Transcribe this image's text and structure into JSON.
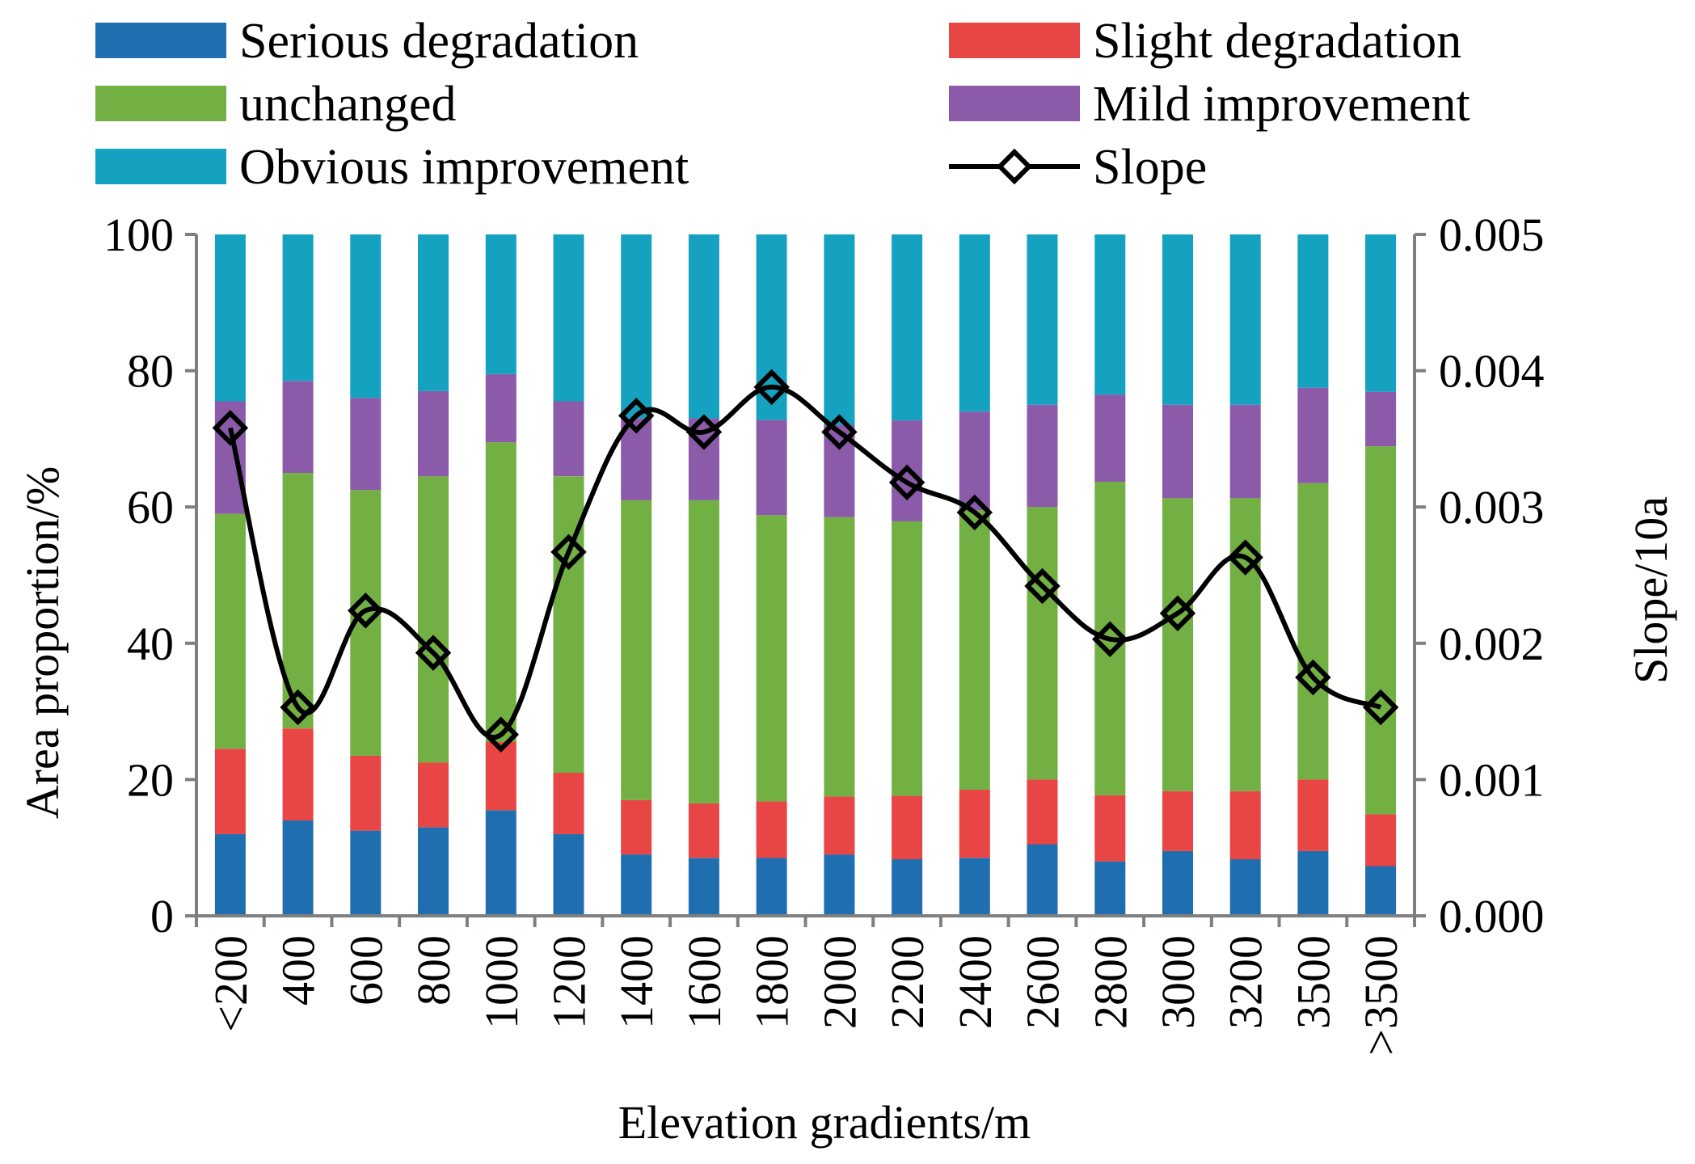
{
  "chart_data": {
    "type": "bar",
    "stacked": true,
    "categories": [
      "<200",
      "400",
      "600",
      "800",
      "1000",
      "1200",
      "1400",
      "1600",
      "1800",
      "2000",
      "2200",
      "2400",
      "2600",
      "2800",
      "3000",
      "3200",
      "3500",
      ">3500"
    ],
    "xlabel": "Elevation gradients/m",
    "ylabel": "Area proportion/%",
    "y2label": "Slope/10a",
    "ylim": [
      0,
      100
    ],
    "y2lim": [
      0,
      0.005
    ],
    "yticks": [
      "0",
      "20",
      "40",
      "60",
      "80",
      "100"
    ],
    "y2ticks": [
      "0.000",
      "0.001",
      "0.002",
      "0.003",
      "0.004",
      "0.005"
    ],
    "grid": false,
    "legend_position": "top",
    "series": [
      {
        "name": "Serious degradation",
        "color": "#1f6fb0",
        "values": [
          12,
          14,
          12.5,
          13,
          15.5,
          12,
          9,
          8.5,
          8.5,
          9,
          8.3,
          8.5,
          10.5,
          8,
          9.5,
          8.3,
          9.5,
          7.3
        ]
      },
      {
        "name": "Slight degradation",
        "color": "#e84545",
        "values": [
          12.5,
          13.5,
          11,
          9.5,
          10,
          9,
          8,
          8,
          8.3,
          8.5,
          9.3,
          10,
          9.5,
          9.7,
          8.8,
          10,
          10.5,
          7.6
        ]
      },
      {
        "name": "unchanged",
        "color": "#72b043",
        "values": [
          34.5,
          37.5,
          39,
          42,
          44,
          43.5,
          44,
          44.5,
          42,
          41,
          40.3,
          41,
          40,
          46,
          43,
          43,
          43.5,
          54
        ]
      },
      {
        "name": "Mild improvement",
        "color": "#8b5aa8",
        "values": [
          16.5,
          13.5,
          13.5,
          12.5,
          10,
          11,
          12,
          12,
          14,
          13.5,
          14.8,
          14.5,
          15,
          12.8,
          13.7,
          13.7,
          14,
          8
        ]
      },
      {
        "name": "Obvious improvement",
        "color": "#15a2c0",
        "values": [
          24.5,
          21.5,
          24,
          23,
          20.5,
          24.5,
          27,
          27,
          27.2,
          28,
          27.3,
          26,
          25,
          23.5,
          25,
          25,
          22.5,
          23.1
        ]
      }
    ],
    "line_series": {
      "name": "Slope",
      "color": "#000000",
      "marker": "diamond",
      "axis": "right",
      "values": [
        0.00358,
        0.00153,
        0.00224,
        0.00193,
        0.00133,
        0.00267,
        0.00367,
        0.00355,
        0.00388,
        0.00355,
        0.00318,
        0.00296,
        0.00242,
        0.00203,
        0.00222,
        0.00263,
        0.00175,
        0.00153
      ]
    }
  }
}
